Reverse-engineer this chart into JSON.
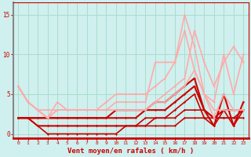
{
  "title": "",
  "xlabel": "Vent moyen/en rafales ( km/h )",
  "background_color": "#cff0ee",
  "grid_color": "#aaddcc",
  "xlim": [
    -0.5,
    23.5
  ],
  "ylim": [
    -0.5,
    16.5
  ],
  "yticks": [
    0,
    5,
    10,
    15
  ],
  "xticks": [
    0,
    1,
    2,
    3,
    4,
    5,
    6,
    7,
    8,
    9,
    10,
    11,
    12,
    13,
    14,
    15,
    16,
    17,
    18,
    19,
    20,
    21,
    22,
    23
  ],
  "series": [
    {
      "x": [
        0,
        1,
        2,
        3,
        4,
        5,
        6,
        7,
        8,
        9,
        10,
        11,
        12,
        13,
        14,
        15,
        16,
        17,
        18,
        19,
        20,
        21,
        22,
        23
      ],
      "y": [
        2,
        2,
        1,
        1,
        1,
        1,
        1,
        1,
        1,
        1,
        1,
        1,
        1,
        1,
        2,
        2,
        2,
        3,
        3,
        3,
        2,
        2,
        2,
        3
      ],
      "color": "#cc0000",
      "lw": 1.2,
      "marker": "D",
      "ms": 1.5
    },
    {
      "x": [
        0,
        1,
        2,
        3,
        4,
        5,
        6,
        7,
        8,
        9,
        10,
        11,
        12,
        13,
        14,
        15,
        16,
        17,
        18,
        19,
        20,
        21,
        22,
        23
      ],
      "y": [
        2,
        2,
        1,
        0,
        0,
        0,
        0,
        0,
        0,
        0,
        0,
        1,
        1,
        1,
        1,
        1,
        1,
        2,
        2,
        2,
        2,
        2,
        2,
        2
      ],
      "color": "#cc0000",
      "lw": 1.2,
      "marker": "D",
      "ms": 1.5
    },
    {
      "x": [
        0,
        1,
        2,
        3,
        4,
        5,
        6,
        7,
        8,
        9,
        10,
        11,
        12,
        13,
        14,
        15,
        16,
        17,
        18,
        19,
        20,
        21,
        22,
        23
      ],
      "y": [
        2,
        2,
        1,
        1,
        1,
        1,
        1,
        1,
        1,
        1,
        1,
        1,
        1,
        2,
        2,
        2,
        3,
        4,
        5,
        2,
        1,
        3,
        1,
        3
      ],
      "color": "#cc0000",
      "lw": 1.2,
      "marker": "D",
      "ms": 1.5
    },
    {
      "x": [
        0,
        1,
        2,
        3,
        4,
        5,
        6,
        7,
        8,
        9,
        10,
        11,
        12,
        13,
        14,
        15,
        16,
        17,
        18,
        19,
        20,
        21,
        22,
        23
      ],
      "y": [
        2,
        2,
        2,
        2,
        2,
        2,
        2,
        2,
        2,
        2,
        2,
        2,
        2,
        3,
        3,
        3,
        4,
        5,
        6,
        3,
        2,
        3,
        3,
        3
      ],
      "color": "#cc0000",
      "lw": 1.5,
      "marker": "D",
      "ms": 1.5
    },
    {
      "x": [
        0,
        1,
        2,
        3,
        4,
        5,
        6,
        7,
        8,
        9,
        10,
        11,
        12,
        13,
        14,
        15,
        16,
        17,
        18,
        19,
        20,
        21,
        22,
        23
      ],
      "y": [
        2,
        2,
        2,
        2,
        2,
        2,
        2,
        2,
        2,
        2,
        3,
        3,
        3,
        3,
        4,
        4,
        5,
        6,
        7,
        3,
        1,
        5,
        1,
        4
      ],
      "color": "#cc0000",
      "lw": 1.5,
      "marker": "D",
      "ms": 1.5
    },
    {
      "x": [
        0,
        1,
        2,
        3,
        4,
        5,
        6,
        7,
        8,
        9,
        10,
        11,
        12,
        13,
        14,
        15,
        16,
        17,
        18,
        19,
        20,
        21,
        22,
        23
      ],
      "y": [
        6,
        4,
        3,
        3,
        3,
        3,
        3,
        3,
        3,
        3,
        3,
        3,
        3,
        3,
        4,
        4,
        5,
        6,
        8,
        5,
        2,
        5,
        3,
        3
      ],
      "color": "#ffaaaa",
      "lw": 1.2,
      "marker": "D",
      "ms": 1.5
    },
    {
      "x": [
        0,
        1,
        2,
        3,
        4,
        5,
        6,
        7,
        8,
        9,
        10,
        11,
        12,
        13,
        14,
        15,
        16,
        17,
        18,
        19,
        20,
        21,
        22,
        23
      ],
      "y": [
        6,
        4,
        3,
        2,
        3,
        3,
        3,
        3,
        3,
        3,
        3,
        3,
        3,
        3,
        4,
        5,
        6,
        7,
        13,
        9,
        6,
        9,
        11,
        9
      ],
      "color": "#ffaaaa",
      "lw": 1.2,
      "marker": "D",
      "ms": 1.5
    },
    {
      "x": [
        0,
        1,
        2,
        3,
        4,
        5,
        6,
        7,
        8,
        9,
        10,
        11,
        12,
        13,
        14,
        15,
        16,
        17,
        18,
        19,
        20,
        21,
        22,
        23
      ],
      "y": [
        6,
        4,
        3,
        2,
        4,
        3,
        3,
        3,
        3,
        4,
        5,
        5,
        5,
        5,
        6,
        7,
        9,
        13,
        8,
        5,
        4,
        10,
        5,
        10
      ],
      "color": "#ffaaaa",
      "lw": 1.2,
      "marker": "D",
      "ms": 1.5
    },
    {
      "x": [
        0,
        1,
        2,
        3,
        4,
        5,
        6,
        7,
        8,
        9,
        10,
        11,
        12,
        13,
        14,
        15,
        16,
        17,
        18,
        19,
        20,
        21,
        22,
        23
      ],
      "y": [
        6,
        4,
        3,
        2,
        3,
        3,
        3,
        3,
        3,
        3,
        4,
        4,
        4,
        4,
        9,
        9,
        9,
        15,
        11,
        5,
        3,
        3,
        3,
        3
      ],
      "color": "#ffaaaa",
      "lw": 1.2,
      "marker": "D",
      "ms": 1.5
    }
  ]
}
